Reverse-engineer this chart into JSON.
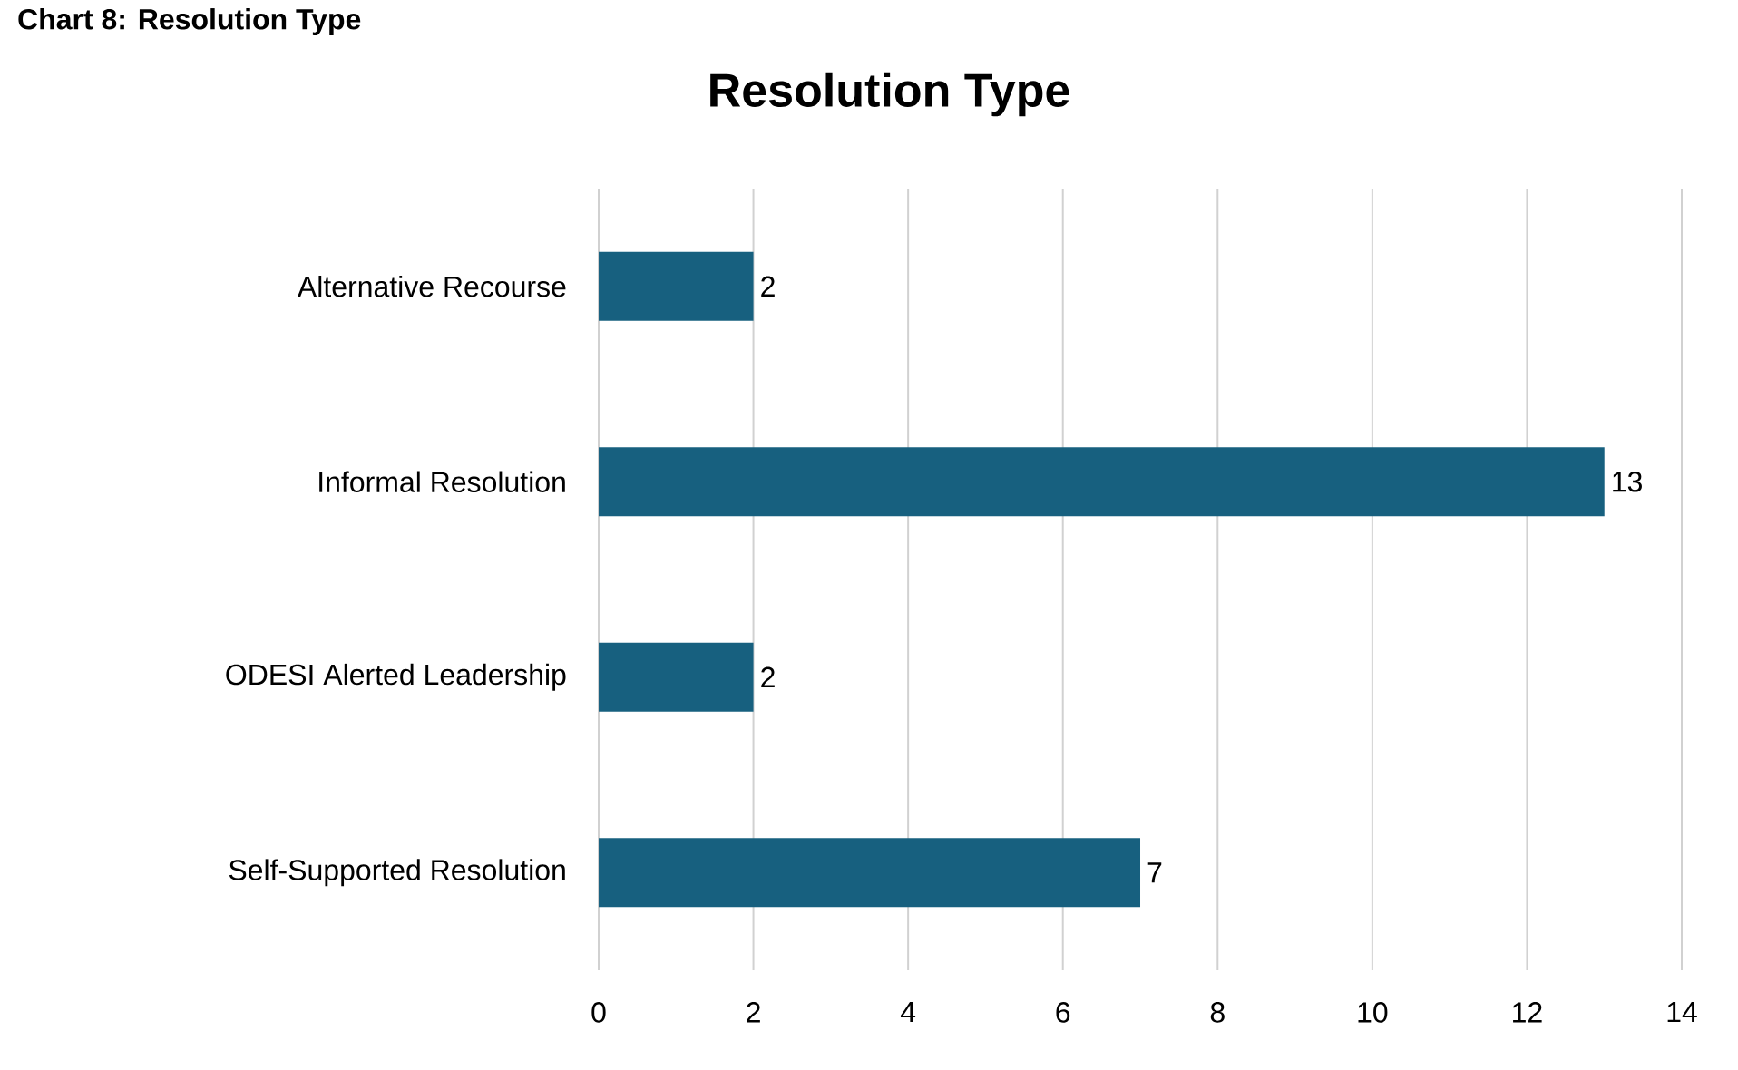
{
  "chart_data": {
    "type": "bar",
    "orientation": "horizontal",
    "title": "Resolution Type",
    "annotations": [
      "Chart 8: Resolution Type"
    ],
    "categories": [
      "Alternative Recourse",
      "Informal Resolution",
      "ODESI Alerted Leadership",
      "Self-Supported Resolution"
    ],
    "values": [
      2,
      13,
      2,
      7
    ],
    "color": "#17607f",
    "xlim": [
      0,
      14
    ],
    "xticks": [
      0,
      2,
      4,
      6,
      8,
      10,
      12,
      14
    ],
    "grid": "x",
    "data_labels": true
  }
}
